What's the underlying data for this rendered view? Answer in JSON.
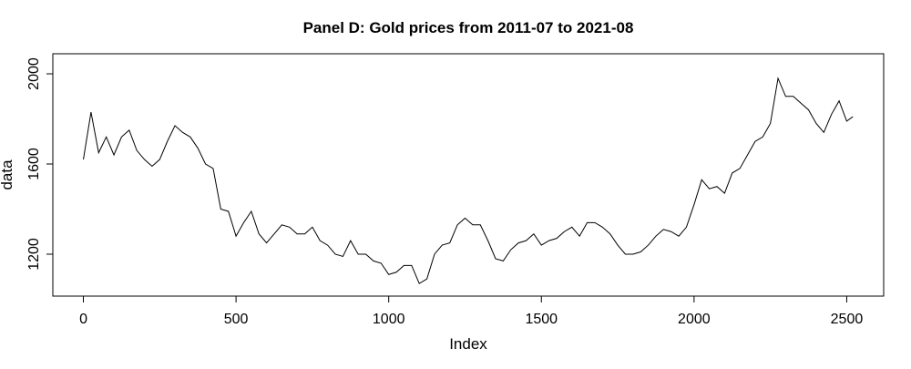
{
  "chart_data": {
    "type": "line",
    "title": "Panel D: Gold prices from 2011-07 to 2021-08",
    "x_label": "Index",
    "y_label": "data",
    "x": [
      0,
      25,
      50,
      75,
      100,
      125,
      150,
      175,
      200,
      225,
      250,
      275,
      300,
      325,
      350,
      375,
      400,
      425,
      450,
      475,
      500,
      525,
      550,
      575,
      600,
      625,
      650,
      675,
      700,
      725,
      750,
      775,
      800,
      825,
      850,
      875,
      900,
      925,
      950,
      975,
      1000,
      1025,
      1050,
      1075,
      1100,
      1125,
      1150,
      1175,
      1200,
      1225,
      1250,
      1275,
      1300,
      1325,
      1350,
      1375,
      1400,
      1425,
      1450,
      1475,
      1500,
      1525,
      1550,
      1575,
      1600,
      1625,
      1650,
      1675,
      1700,
      1725,
      1750,
      1775,
      1800,
      1825,
      1850,
      1875,
      1900,
      1925,
      1950,
      1975,
      2000,
      2025,
      2050,
      2075,
      2100,
      2125,
      2150,
      2175,
      2200,
      2225,
      2250,
      2275,
      2300,
      2325,
      2350,
      2375,
      2400,
      2425,
      2450,
      2475,
      2500,
      2520
    ],
    "series": [
      {
        "name": "data",
        "color": "#000000",
        "values": [
          1620,
          1830,
          1650,
          1720,
          1640,
          1720,
          1750,
          1660,
          1620,
          1590,
          1620,
          1700,
          1770,
          1740,
          1720,
          1670,
          1600,
          1580,
          1400,
          1390,
          1280,
          1340,
          1390,
          1290,
          1250,
          1290,
          1330,
          1320,
          1290,
          1290,
          1320,
          1260,
          1240,
          1200,
          1190,
          1260,
          1200,
          1200,
          1170,
          1160,
          1110,
          1120,
          1150,
          1150,
          1070,
          1090,
          1200,
          1240,
          1250,
          1330,
          1360,
          1330,
          1330,
          1260,
          1180,
          1170,
          1220,
          1250,
          1260,
          1290,
          1240,
          1260,
          1270,
          1300,
          1320,
          1280,
          1340,
          1340,
          1320,
          1290,
          1240,
          1200,
          1200,
          1210,
          1240,
          1280,
          1310,
          1300,
          1280,
          1320,
          1420,
          1530,
          1490,
          1500,
          1470,
          1560,
          1580,
          1640,
          1700,
          1720,
          1780,
          1980,
          1900,
          1900,
          1870,
          1840,
          1780,
          1740,
          1820,
          1880,
          1790,
          1810
        ]
      }
    ],
    "xlim": [
      -100,
      2621
    ],
    "ylim": [
      1014,
      2089
    ],
    "xticks": [
      0,
      500,
      1000,
      1500,
      2000,
      2500
    ],
    "yticks": [
      1200,
      1600,
      2000
    ]
  }
}
